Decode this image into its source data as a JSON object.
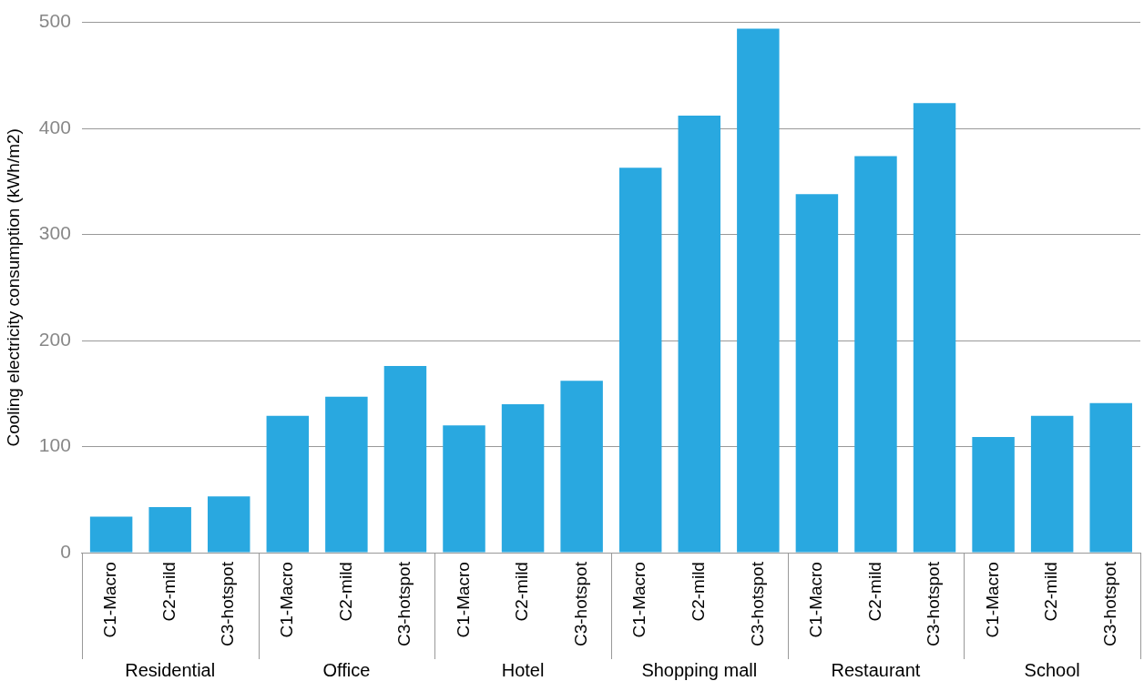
{
  "chart_data": {
    "type": "bar",
    "ylabel": "Cooling electricity consumption (kWh/m2)",
    "categories": [
      "C1-Macro",
      "C2-mild",
      "C3-hotspot",
      "C1-Macro",
      "C2-mild",
      "C3-hotspot",
      "C1-Macro",
      "C2-mild",
      "C3-hotspot",
      "C1-Macro",
      "C2-mild",
      "C3-hotspot",
      "C1-Macro",
      "C2-mild",
      "C3-hotspot",
      "C1-Macro",
      "C2-mild",
      "C3-hotspot"
    ],
    "values": [
      34,
      43,
      53,
      129,
      147,
      176,
      120,
      140,
      162,
      363,
      412,
      494,
      338,
      374,
      424,
      109,
      129,
      141
    ],
    "color": "#29a8e0",
    "ylim": [
      0,
      500
    ],
    "yticks": [
      0,
      100,
      200,
      300,
      400,
      500
    ],
    "grid": "y",
    "legend": false,
    "annotations": [
      "Residential",
      "Office",
      "Hotel",
      "Shopping mall",
      "Restaurant",
      "School"
    ]
  }
}
